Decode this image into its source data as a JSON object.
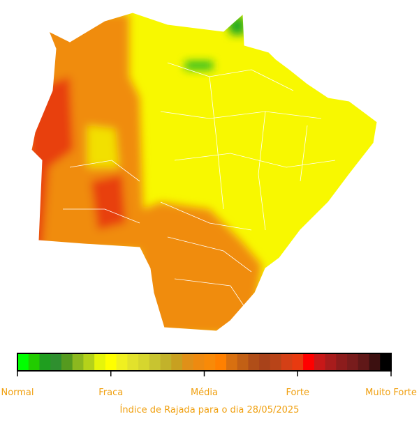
{
  "colorbar": {
    "colors": [
      "#00ff00",
      "#22cc00",
      "#1f9e1f",
      "#2f8f2f",
      "#559a1f",
      "#8cb81f",
      "#b4d21a",
      "#e6f50a",
      "#ffff00",
      "#f0f020",
      "#e2e22c",
      "#d6d62e",
      "#c8c430",
      "#c2b22a",
      "#c8a020",
      "#e09018",
      "#ee8a10",
      "#f88a08",
      "#ff8000",
      "#d87010",
      "#c26015",
      "#b04e18",
      "#a8421a",
      "#b84418",
      "#d44016",
      "#e83a10",
      "#ff0000",
      "#c81818",
      "#a81c1c",
      "#8c1c1c",
      "#781c1c",
      "#601818",
      "#3c1010",
      "#000000"
    ],
    "labels": [
      "Normal",
      "Fraca",
      "Média",
      "Forte",
      "Muito Forte"
    ]
  },
  "caption": "Índice de Rajada para o dia 28/05/2025"
}
